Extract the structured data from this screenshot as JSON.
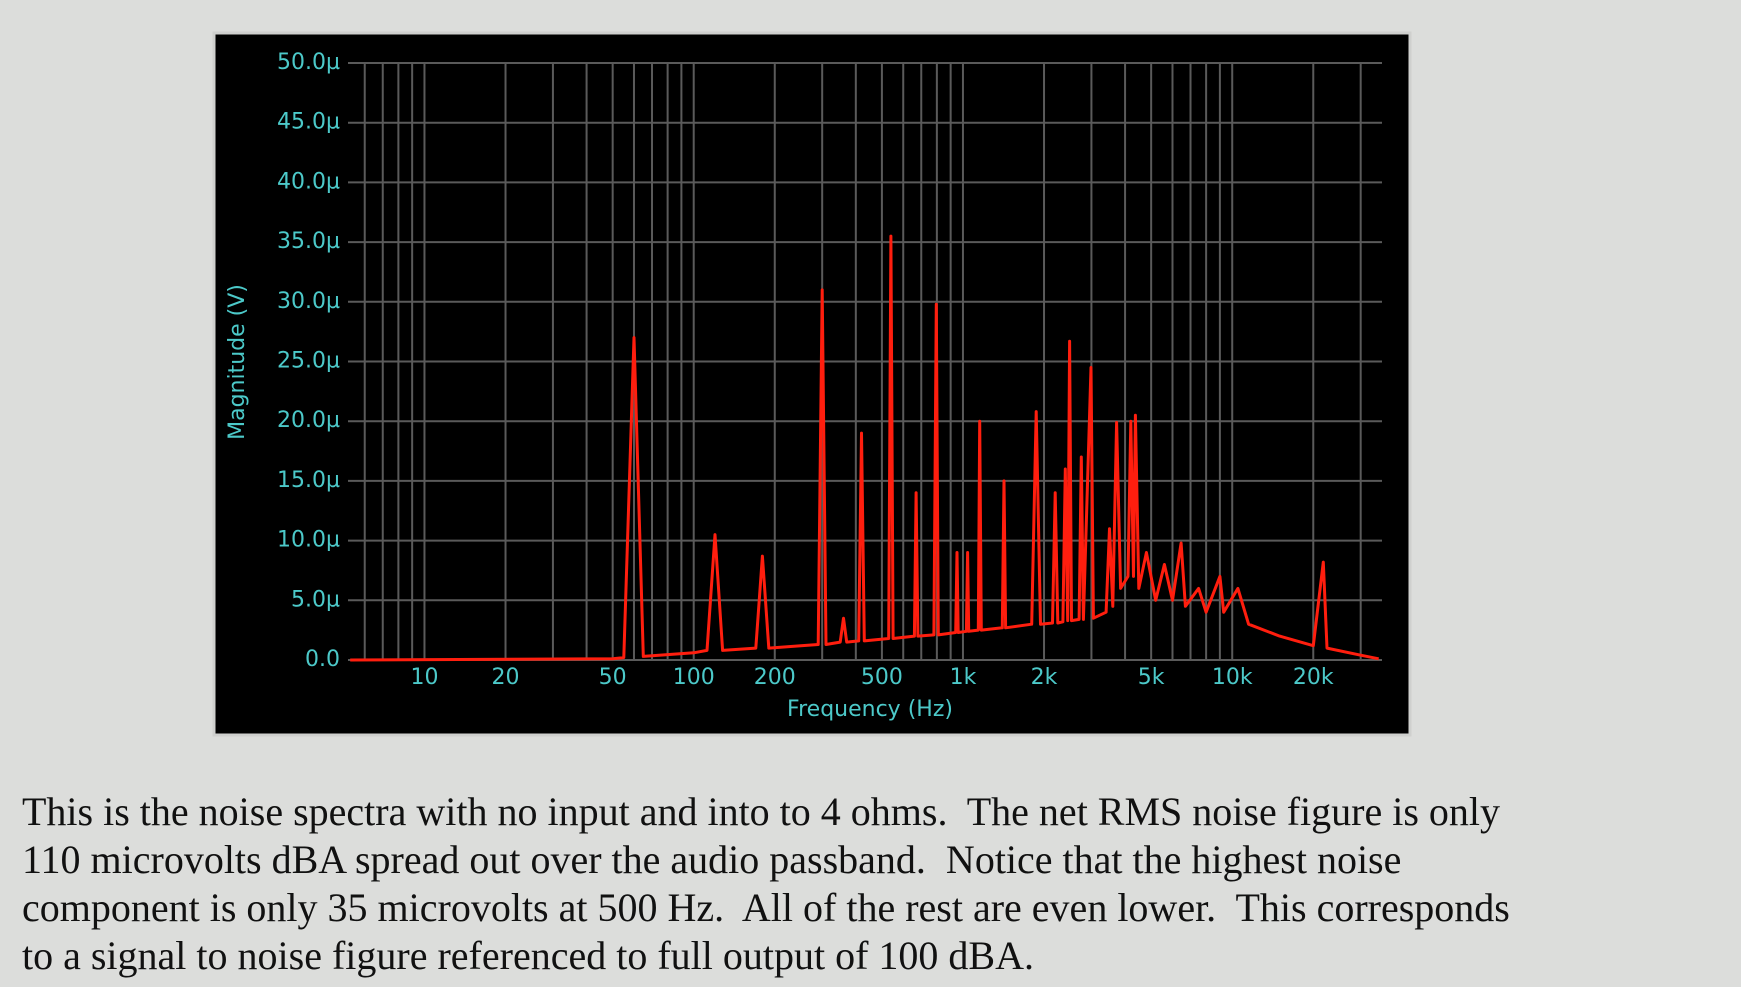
{
  "chart_data": {
    "type": "line",
    "xlabel": "Frequency (Hz)",
    "ylabel": "Magnitude (V)",
    "xscale": "log",
    "grid": true,
    "color": "#ff1e0e",
    "xlim": [
      5.2,
      36000
    ],
    "ylim": [
      0,
      5e-05
    ],
    "xticks": [
      10,
      20,
      50,
      100,
      200,
      500,
      {
        "value": 1000,
        "label": "1k"
      },
      {
        "value": 2000,
        "label": "2k"
      },
      {
        "value": 5000,
        "label": "5k"
      },
      {
        "value": 10000,
        "label": "10k"
      },
      {
        "value": 20000,
        "label": "20k"
      }
    ],
    "x_minor_ticks": [
      6,
      7,
      8,
      9,
      30,
      40,
      60,
      70,
      80,
      90,
      300,
      400,
      600,
      700,
      800,
      900,
      3000,
      4000,
      6000,
      7000,
      8000,
      9000,
      30000
    ],
    "yticks": [
      {
        "value": 0,
        "label": "0.0"
      },
      {
        "value": 5e-06,
        "label": "5.0µ"
      },
      {
        "value": 1e-05,
        "label": "10.0µ"
      },
      {
        "value": 1.5e-05,
        "label": "15.0µ"
      },
      {
        "value": 2e-05,
        "label": "20.0µ"
      },
      {
        "value": 2.5e-05,
        "label": "25.0µ"
      },
      {
        "value": 3e-05,
        "label": "30.0µ"
      },
      {
        "value": 3.5e-05,
        "label": "35.0µ"
      },
      {
        "value": 4e-05,
        "label": "40.0µ"
      },
      {
        "value": 4.5e-05,
        "label": "45.0µ"
      },
      {
        "value": 5e-05,
        "label": "50.0µ"
      }
    ],
    "x": [
      5.3,
      50,
      55,
      60,
      65,
      100,
      112,
      120,
      128,
      170,
      180,
      190,
      250,
      290,
      300,
      310,
      350,
      360,
      370,
      410,
      420,
      430,
      530,
      540,
      550,
      660,
      670,
      680,
      780,
      796,
      810,
      940,
      950,
      960,
      1030,
      1040,
      1050,
      1140,
      1154,
      1170,
      1400,
      1420,
      1440,
      1800,
      1870,
      1940,
      2150,
      2200,
      2250,
      2350,
      2400,
      2450,
      2490,
      2530,
      2700,
      2750,
      2800,
      2990,
      3050,
      3400,
      3500,
      3600,
      3720,
      3850,
      4100,
      4200,
      4300,
      4370,
      4500,
      4800,
      5200,
      5600,
      6000,
      6460,
      6700,
      7500,
      8000,
      9000,
      9300,
      10500,
      11500,
      15000,
      20000,
      21800,
      22500,
      30000,
      35000
    ],
    "values": [
      0.0,
      1e-07,
      2e-07,
      2.7e-05,
      3e-07,
      6e-07,
      8e-07,
      1.05e-05,
      8e-07,
      1e-06,
      8.7e-06,
      1e-06,
      1.2e-06,
      1.3e-06,
      3.1e-05,
      1.3e-06,
      1.5e-06,
      3.5e-06,
      1.5e-06,
      1.6e-06,
      1.9e-05,
      1.6e-06,
      1.8e-06,
      3.55e-05,
      1.8e-06,
      2e-06,
      1.4e-05,
      2e-06,
      2.1e-06,
      2.98e-05,
      2.1e-06,
      2.3e-06,
      9e-06,
      2.3e-06,
      2.4e-06,
      9e-06,
      2.4e-06,
      2.5e-06,
      2e-05,
      2.5e-06,
      2.7e-06,
      1.5e-05,
      2.7e-06,
      3e-06,
      2.08e-05,
      3e-06,
      3.1e-06,
      1.4e-05,
      3.1e-06,
      3.2e-06,
      1.6e-05,
      3.3e-06,
      2.67e-05,
      3.3e-06,
      3.4e-06,
      1.7e-05,
      3.4e-06,
      2.45e-05,
      3.5e-06,
      4e-06,
      1.1e-05,
      4.5e-06,
      1.99e-05,
      6e-06,
      7e-06,
      2e-05,
      7e-06,
      2.05e-05,
      6e-06,
      9e-06,
      5e-06,
      8e-06,
      5e-06,
      9.8e-06,
      4.5e-06,
      6e-06,
      4e-06,
      7e-06,
      4e-06,
      6e-06,
      3e-06,
      2e-06,
      1.2e-06,
      8.2e-06,
      1e-06,
      4e-07,
      1e-07
    ]
  },
  "caption": {
    "lines": [
      "This is the noise spectra with no input and into to 4 ohms.  The net RMS noise figure is only",
      "110 microvolts dBA spread out over the audio passband.  Notice that the highest noise",
      "component is only 35 microvolts at 500 Hz.  All of the rest are even lower.  This corresponds",
      "to a signal to noise figure referenced to full output of 100 dBA."
    ]
  }
}
